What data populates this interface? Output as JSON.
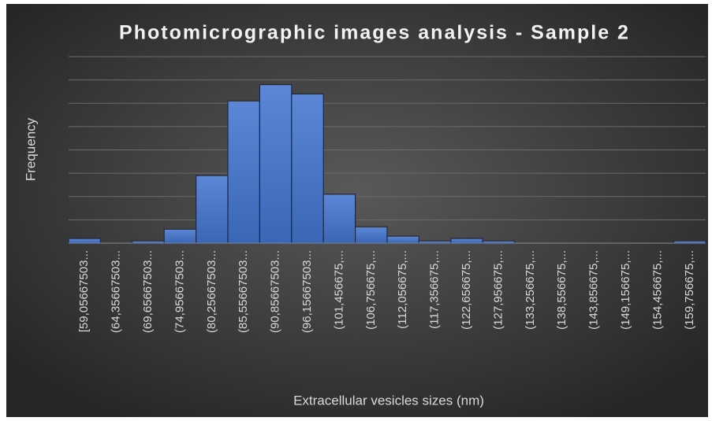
{
  "chart_data": {
    "type": "histogram",
    "title": "Photomicrographic images analysis - Sample 2",
    "x_label": "Extracellular vesicles sizes (nm)",
    "y_label": "Frequency",
    "categories": [
      "[59,05667503...",
      "(64,35667503...",
      "(69,65667503...",
      "(74,95667503...",
      "(80,25667503...",
      "(85,55667503...",
      "(90,85667503...",
      "(96,15667503...",
      "(101,456675,...",
      "(106,756675,...",
      "(112,056675,...",
      "(117,356675,...",
      "(122,656675,...",
      "(127,956675,...",
      "(133,256675,...",
      "(138,556675,...",
      "(143,856675,...",
      "(149,156675,...",
      "(154,456675,...",
      "(159,756675,..."
    ],
    "values": [
      0.2,
      0,
      0.1,
      0.6,
      2.9,
      6.1,
      6.8,
      6.4,
      2.1,
      0.7,
      0.3,
      0.1,
      0.2,
      0.1,
      0,
      0,
      0,
      0,
      0,
      0.1
    ],
    "color": "#4472c4",
    "ylim": [
      0,
      8
    ],
    "yticks": [
      0,
      1,
      2,
      3,
      4,
      5,
      6,
      7,
      8
    ],
    "grid": true,
    "y_tick_labels": false
  }
}
